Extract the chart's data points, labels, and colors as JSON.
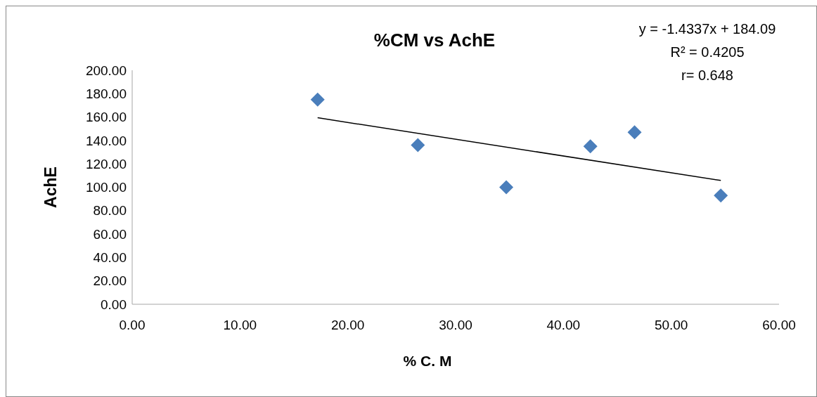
{
  "chart_data": {
    "type": "scatter",
    "title": "%CM vs AchE",
    "xlabel": "% C. M",
    "ylabel": "AchE",
    "xlim": [
      0,
      60
    ],
    "xticks": [
      {
        "value": 0,
        "label": "0.00"
      },
      {
        "value": 10,
        "label": "10.00"
      },
      {
        "value": 20,
        "label": "20.00"
      },
      {
        "value": 30,
        "label": "30.00"
      },
      {
        "value": 40,
        "label": "40.00"
      },
      {
        "value": 50,
        "label": "50.00"
      },
      {
        "value": 60,
        "label": "60.00"
      }
    ],
    "ylim": [
      0,
      200
    ],
    "yticks": [
      {
        "value": 0,
        "label": "0.00"
      },
      {
        "value": 20,
        "label": "20.00"
      },
      {
        "value": 40,
        "label": "40.00"
      },
      {
        "value": 60,
        "label": "60.00"
      },
      {
        "value": 80,
        "label": "80.00"
      },
      {
        "value": 100,
        "label": "100.00"
      },
      {
        "value": 120,
        "label": "120.00"
      },
      {
        "value": 140,
        "label": "140.00"
      },
      {
        "value": 160,
        "label": "160.00"
      },
      {
        "value": 180,
        "label": "180.00"
      },
      {
        "value": 200,
        "label": "200.00"
      }
    ],
    "series": [
      {
        "marker": "diamond",
        "color": "#4a7ebb",
        "x": [
          17.2,
          26.5,
          34.7,
          42.5,
          46.6,
          54.6
        ],
        "values": [
          175,
          136,
          100,
          135,
          147,
          93
        ]
      },
      {
        "type": "line",
        "marker": "none",
        "color": "#000000",
        "x": [
          17.2,
          54.6
        ],
        "values": [
          159.4,
          105.8
        ]
      }
    ],
    "annotations": [
      "y = -1.4337x + 184.09",
      "R² = 0.4205",
      "r= 0.648"
    ]
  }
}
